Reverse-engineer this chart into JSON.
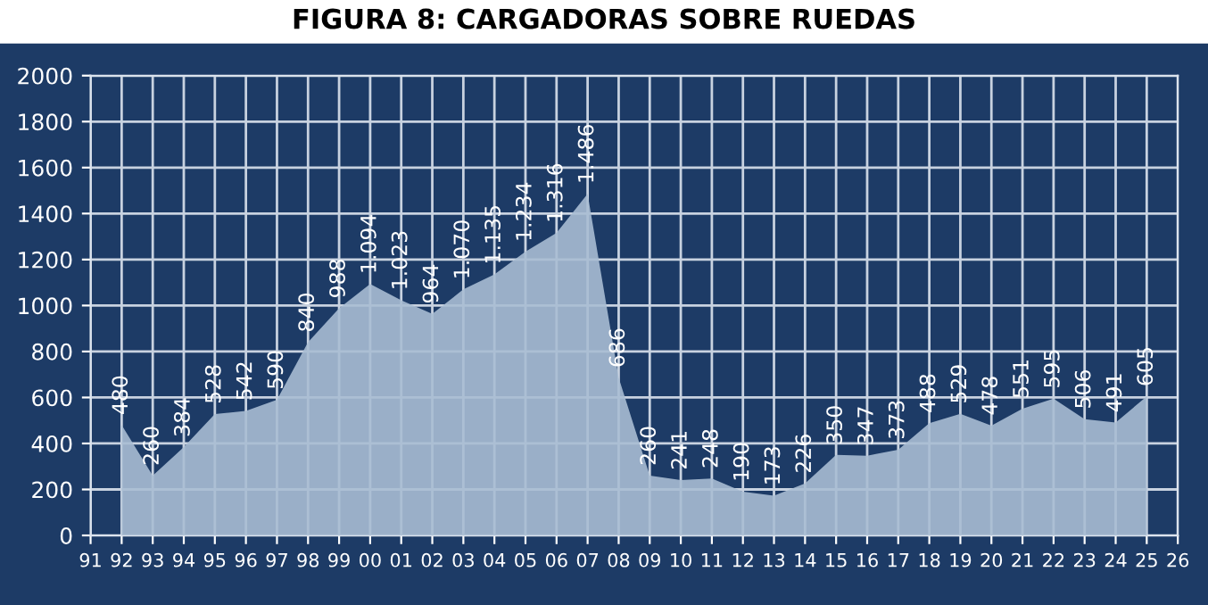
{
  "chart_data": {
    "type": "area",
    "title": "FIGURA 8: CARGADORAS SOBRE RUEDAS",
    "categories": [
      "91",
      "92",
      "93",
      "94",
      "95",
      "96",
      "97",
      "98",
      "99",
      "00",
      "01",
      "02",
      "03",
      "04",
      "05",
      "06",
      "07",
      "08",
      "09",
      "10",
      "11",
      "12",
      "13",
      "14",
      "15",
      "16",
      "17",
      "18",
      "19",
      "20",
      "21",
      "22",
      "23",
      "24",
      "25",
      "26"
    ],
    "series": [
      {
        "color": "#a9bcd3",
        "values": [
          null,
          480,
          260,
          384,
          528,
          542,
          590,
          840,
          988,
          1094,
          1023,
          964,
          1070,
          1135,
          1234,
          1316,
          1486,
          686,
          260,
          241,
          248,
          190,
          173,
          226,
          350,
          347,
          373,
          488,
          529,
          478,
          551,
          595,
          506,
          491,
          605,
          null
        ],
        "value_labels": [
          null,
          "480",
          "260",
          "384",
          "528",
          "542",
          "590",
          "840",
          "988",
          "1.094",
          "1.023",
          "964",
          "1.070",
          "1.135",
          "1.234",
          "1.316",
          "1.486",
          "686",
          "260",
          "241",
          "248",
          "190",
          "173",
          "226",
          "350",
          "347",
          "373",
          "488",
          "529",
          "478",
          "551",
          "595",
          "506",
          "491",
          "605",
          null
        ]
      }
    ],
    "ylim": [
      0,
      2000
    ],
    "yticks": [
      0,
      200,
      400,
      600,
      800,
      1000,
      1200,
      1400,
      1600,
      1800,
      2000
    ],
    "grid": true,
    "legend": false
  }
}
